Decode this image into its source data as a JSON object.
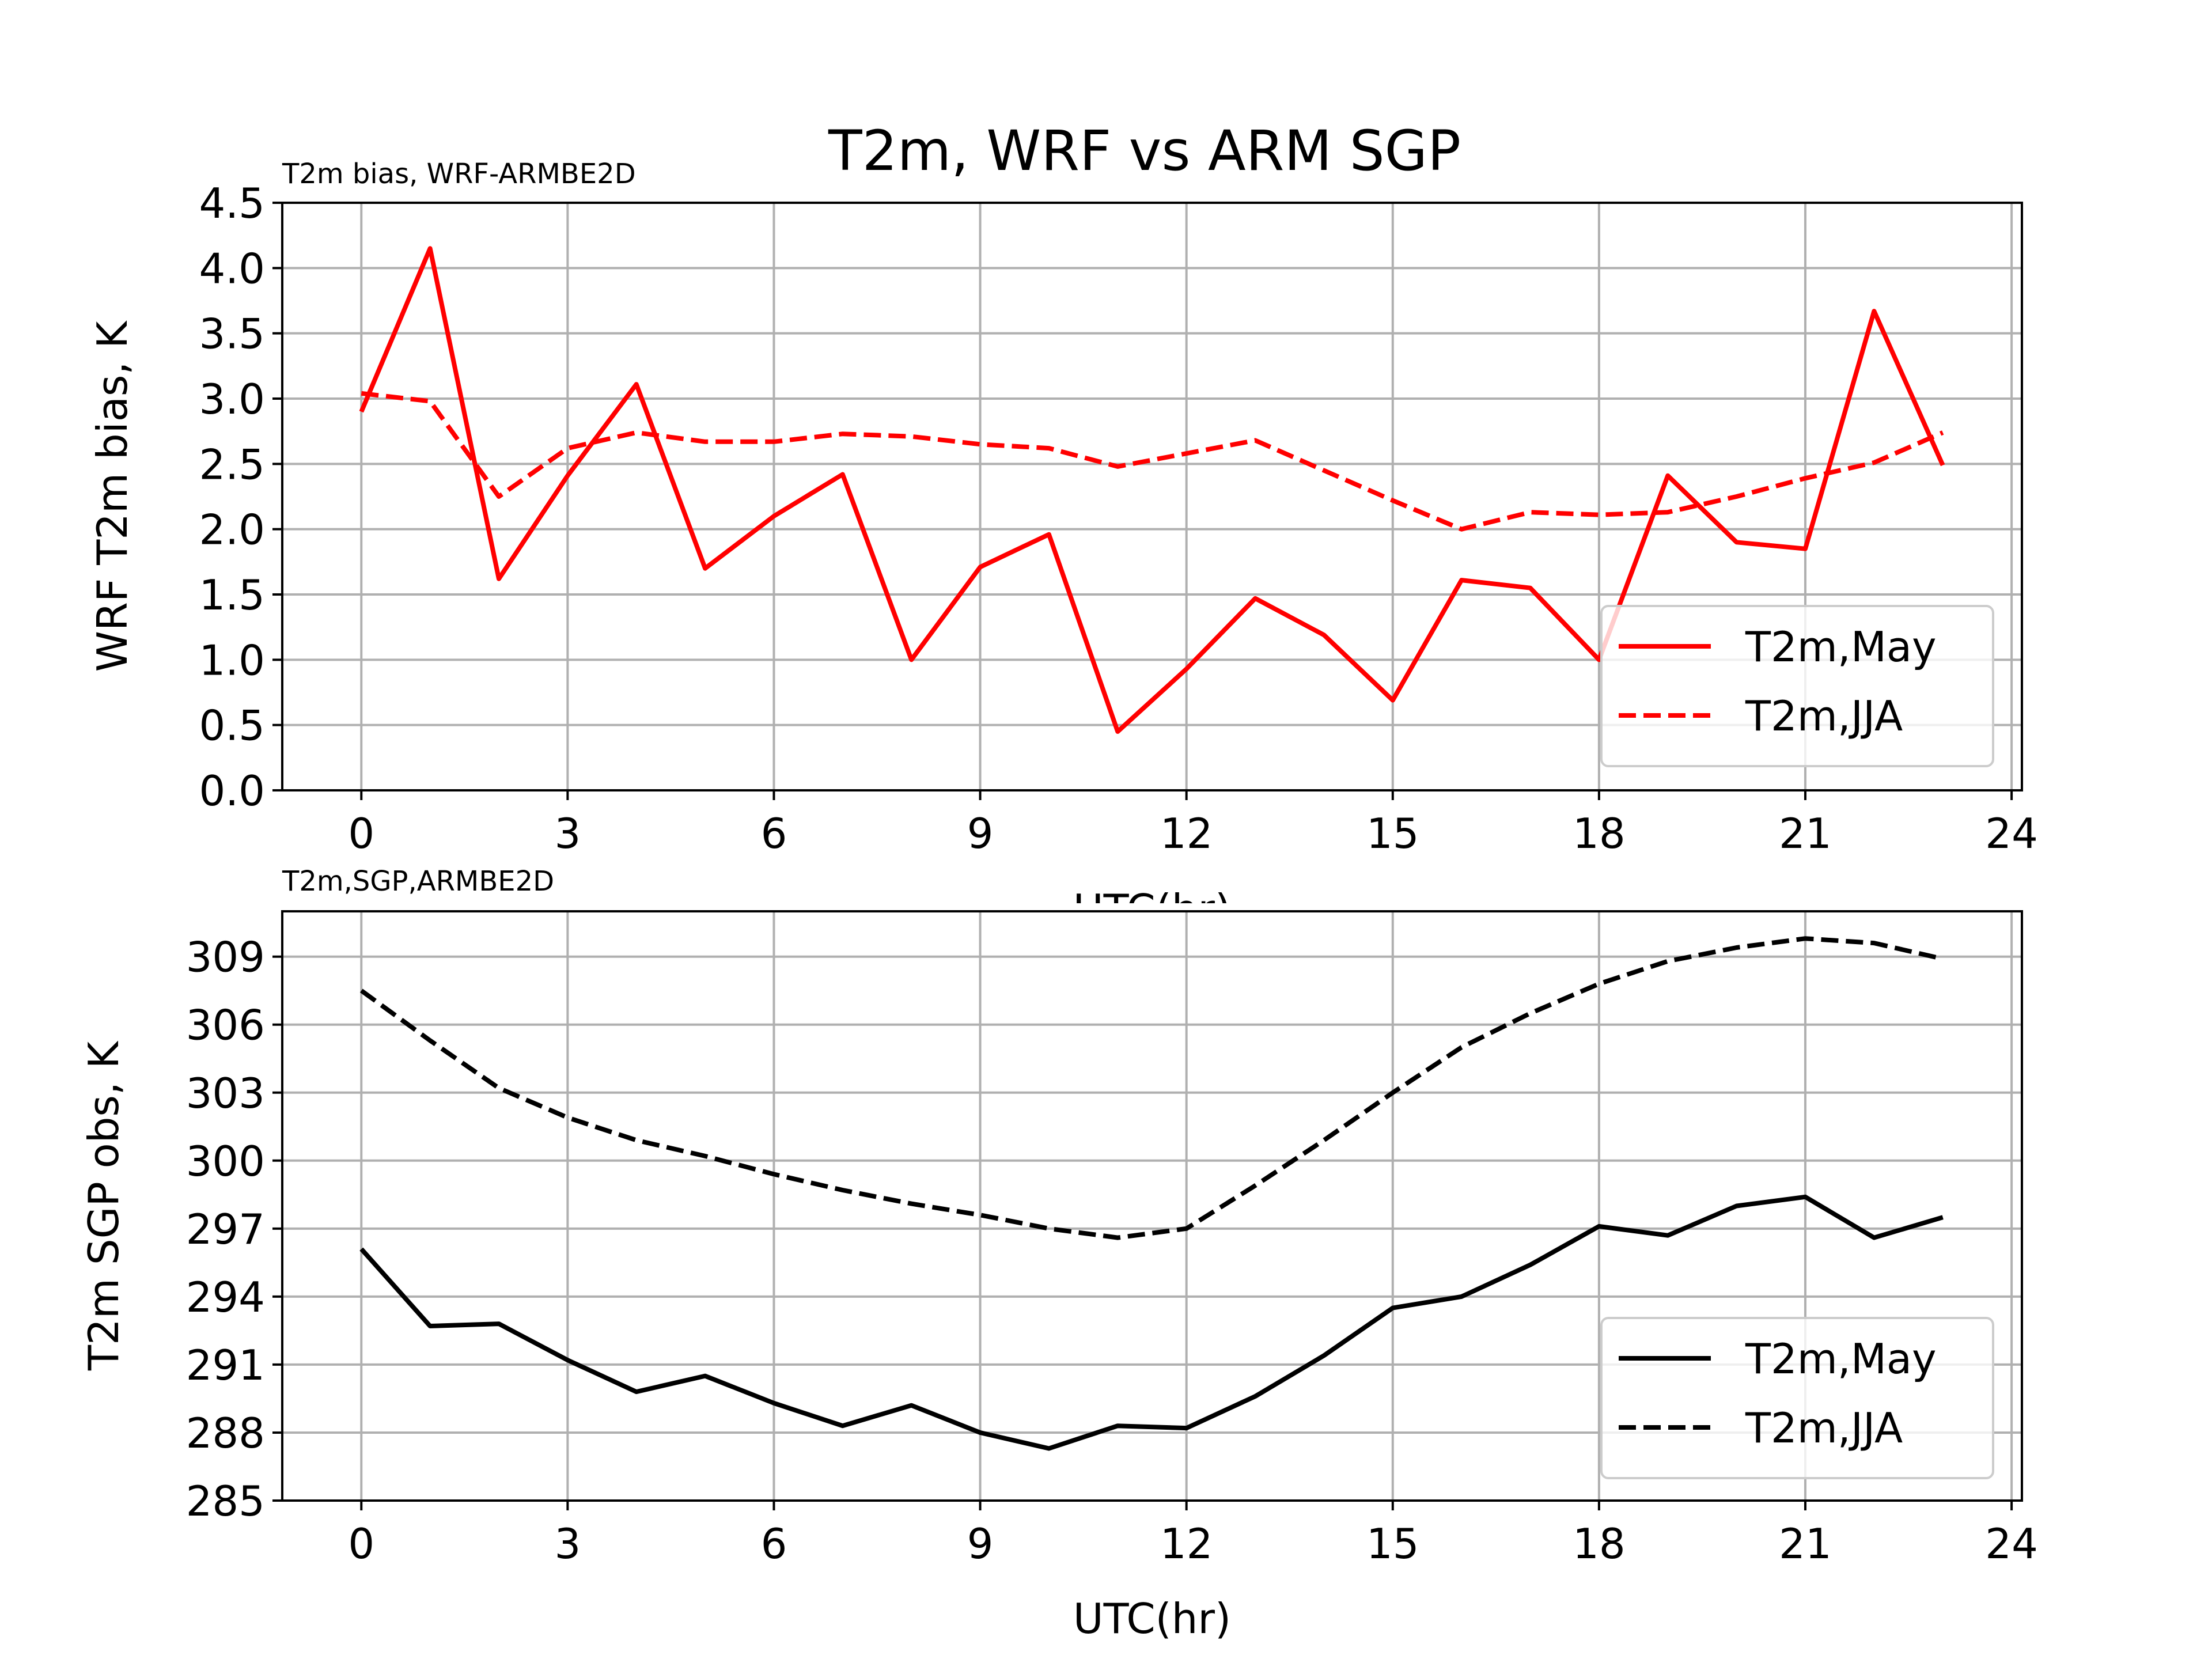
{
  "figure_title": "T2m, WRF vs ARM SGP",
  "chart_data": [
    {
      "type": "line",
      "subtitle": "T2m bias, WRF-ARMBE2D",
      "xlabel": "UTC(hr)",
      "ylabel": "WRF T2m bias, K",
      "xlim": [
        -1.15,
        24.15
      ],
      "ylim": [
        0.0,
        4.5
      ],
      "xticks": [
        "0",
        "3",
        "6",
        "9",
        "12",
        "15",
        "18",
        "21",
        "24"
      ],
      "yticks": [
        "0.0",
        "0.5",
        "1.0",
        "1.5",
        "2.0",
        "2.5",
        "3.0",
        "3.5",
        "4.0",
        "4.5"
      ],
      "grid": true,
      "legend_position": "lower-right",
      "x": [
        0,
        1,
        2,
        3,
        4,
        5,
        6,
        7,
        8,
        9,
        10,
        11,
        12,
        13,
        14,
        15,
        16,
        17,
        18,
        19,
        20,
        21,
        22,
        23
      ],
      "series": [
        {
          "name": "T2m,May",
          "style": "solid",
          "color": "#ff0000",
          "values": [
            2.9,
            4.15,
            1.62,
            2.41,
            3.11,
            1.7,
            2.1,
            2.42,
            1.0,
            1.71,
            1.96,
            0.45,
            0.93,
            1.47,
            1.19,
            0.69,
            1.61,
            1.55,
            1.0,
            2.41,
            1.9,
            1.85,
            3.67,
            2.49
          ]
        },
        {
          "name": "T2m,JJA",
          "style": "dashed",
          "color": "#ff0000",
          "values": [
            3.04,
            2.98,
            2.25,
            2.62,
            2.74,
            2.67,
            2.67,
            2.73,
            2.71,
            2.65,
            2.62,
            2.48,
            2.58,
            2.68,
            2.45,
            2.22,
            2.0,
            2.13,
            2.11,
            2.13,
            2.25,
            2.39,
            2.51,
            2.74
          ]
        }
      ]
    },
    {
      "type": "line",
      "subtitle": "T2m,SGP,ARMBE2D",
      "xlabel": "UTC(hr)",
      "ylabel": "T2m SGP obs, K",
      "xlim": [
        -1.15,
        24.15
      ],
      "ylim": [
        285,
        311
      ],
      "xticks": [
        "0",
        "3",
        "6",
        "9",
        "12",
        "15",
        "18",
        "21",
        "24"
      ],
      "yticks": [
        "285",
        "288",
        "291",
        "294",
        "297",
        "300",
        "303",
        "306",
        "309"
      ],
      "grid": true,
      "legend_position": "lower-right",
      "x": [
        0,
        1,
        2,
        3,
        4,
        5,
        6,
        7,
        8,
        9,
        10,
        11,
        12,
        13,
        14,
        15,
        16,
        17,
        18,
        19,
        20,
        21,
        22,
        23
      ],
      "series": [
        {
          "name": "T2m,May",
          "style": "solid",
          "color": "#000000",
          "values": [
            296.1,
            292.7,
            292.8,
            291.2,
            289.8,
            290.5,
            289.3,
            288.3,
            289.2,
            288.0,
            287.3,
            288.3,
            288.2,
            289.6,
            291.4,
            293.5,
            294.0,
            295.4,
            297.1,
            296.7,
            298.0,
            298.4,
            296.6,
            297.5
          ]
        },
        {
          "name": "T2m,JJA",
          "style": "dashed",
          "color": "#000000",
          "values": [
            307.5,
            305.3,
            303.2,
            301.9,
            300.9,
            300.2,
            299.4,
            298.7,
            298.1,
            297.6,
            297.0,
            296.6,
            297.0,
            298.9,
            300.9,
            303.0,
            305.0,
            306.5,
            307.8,
            308.8,
            309.4,
            309.8,
            309.6,
            308.9
          ]
        }
      ]
    }
  ]
}
